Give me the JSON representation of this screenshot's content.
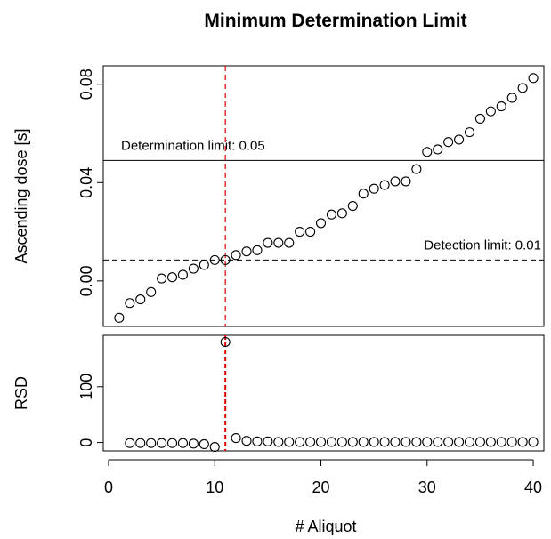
{
  "chart_data": {
    "type": "scatter",
    "title": "Minimum Determination Limit",
    "xlabel": "# Aliquot",
    "x_ticks": [
      0,
      10,
      20,
      30,
      40
    ],
    "xlim": [
      -0.5,
      41
    ],
    "highlight_x": 11,
    "highlight_color": "#dd0000",
    "panels": [
      {
        "id": "dose",
        "ylabel": "Ascending dose [s]",
        "ylim": [
          -0.0185,
          0.0875
        ],
        "y_ticks": [
          0.0,
          0.04,
          0.08
        ],
        "y_tick_labels": [
          "0.00",
          "0.04",
          "0.08"
        ],
        "x": [
          1,
          2,
          3,
          4,
          5,
          6,
          7,
          8,
          9,
          10,
          11,
          12,
          13,
          14,
          15,
          16,
          17,
          18,
          19,
          20,
          21,
          22,
          23,
          24,
          25,
          26,
          27,
          28,
          29,
          30,
          31,
          32,
          33,
          34,
          35,
          36,
          37,
          38,
          39,
          40
        ],
        "y": [
          -0.015,
          -0.009,
          -0.0075,
          -0.0045,
          0.001,
          0.0015,
          0.0025,
          0.005,
          0.0065,
          0.0085,
          0.0085,
          0.0105,
          0.012,
          0.0125,
          0.0155,
          0.0155,
          0.0155,
          0.02,
          0.02,
          0.0235,
          0.027,
          0.0275,
          0.0305,
          0.0355,
          0.0375,
          0.039,
          0.0405,
          0.0405,
          0.0455,
          0.0525,
          0.0535,
          0.0565,
          0.0575,
          0.0605,
          0.066,
          0.069,
          0.071,
          0.0745,
          0.0785,
          0.0825
        ],
        "hlines": [
          {
            "y": 0.049,
            "style": "solid",
            "label": "Determination limit: 0.05",
            "label_pos": "left"
          },
          {
            "y": 0.0085,
            "style": "dashed",
            "label": "Detection limit: 0.01",
            "label_pos": "right"
          }
        ]
      },
      {
        "id": "rsd",
        "ylabel": "RSD",
        "ylim": [
          -15,
          192
        ],
        "y_ticks": [
          0,
          100
        ],
        "y_tick_labels": [
          "0",
          "100"
        ],
        "x": [
          2,
          3,
          4,
          5,
          6,
          7,
          8,
          9,
          10,
          11,
          12,
          13,
          14,
          15,
          16,
          17,
          18,
          19,
          20,
          21,
          22,
          23,
          24,
          25,
          26,
          27,
          28,
          29,
          30,
          31,
          32,
          33,
          34,
          35,
          36,
          37,
          38,
          39,
          40
        ],
        "y": [
          -1,
          -1,
          -1,
          -1,
          -1,
          -1,
          -2,
          -3,
          -8,
          180,
          8,
          3,
          2,
          2,
          1,
          1,
          1,
          1,
          1,
          1,
          1,
          1,
          1,
          1,
          1,
          1,
          1,
          1,
          1,
          1,
          1,
          1,
          1,
          1,
          1,
          1,
          1,
          1,
          1
        ]
      }
    ]
  }
}
